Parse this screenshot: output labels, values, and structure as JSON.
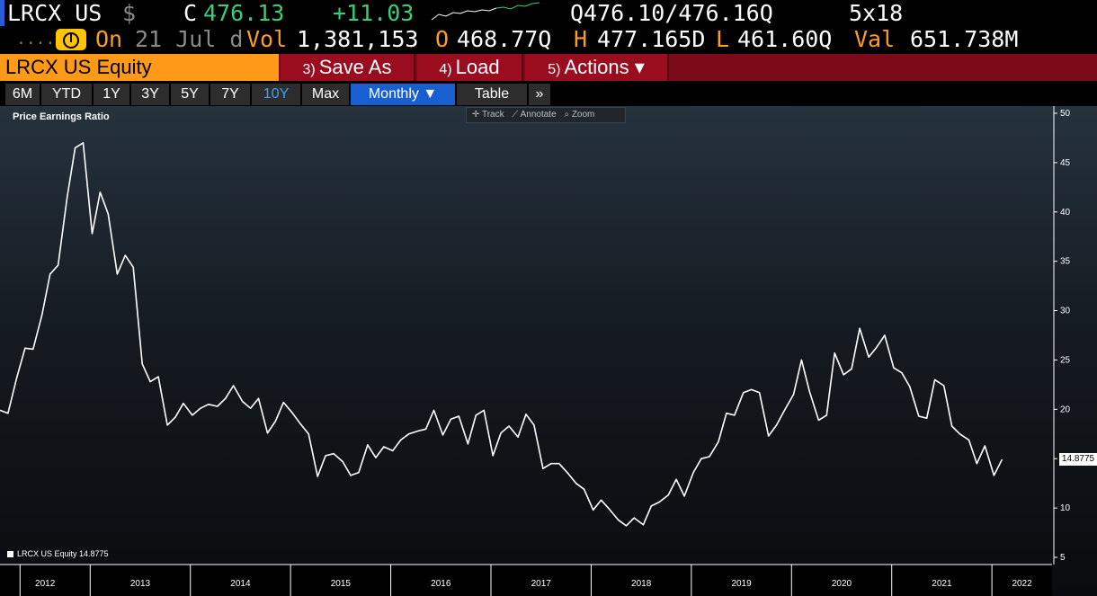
{
  "quote": {
    "ticker": "LRCX US",
    "currency": "$",
    "close_label": "C",
    "last": "476.13",
    "change": "+11.03",
    "bid_ask": "Q476.10/476.16Q",
    "size": "5x18",
    "on_label": "On",
    "date_text": "21 Jul d",
    "vol_label": "Vol",
    "volume": "1,381,153",
    "open_label": "O",
    "open": "468.77Q",
    "high_label": "H",
    "high": "477.165D",
    "low_label": "L",
    "low": "461.60Q",
    "val_label": "Val",
    "value": "651.738M",
    "dots": "....."
  },
  "menu": {
    "security": "LRCX US Equity",
    "save_num": "3)",
    "save_label": "Save As",
    "load_num": "4)",
    "load_label": "Load",
    "actions_num": "5)",
    "actions_label": "Actions ▾"
  },
  "ranges": [
    "6M",
    "YTD",
    "1Y",
    "3Y",
    "5Y",
    "7Y",
    "10Y",
    "Max"
  ],
  "selected_range": "10Y",
  "period": "Monthly ▼",
  "table_label": "Table",
  "more_label": "»",
  "tools": {
    "track": "✛ Track",
    "annotate": "⟋ Annotate",
    "zoom": "⌕ Zoom"
  },
  "colors": {
    "accent_orange": "#ff9a18",
    "menu_red": "#7b0b18",
    "selected_blue": "#1a5fcf",
    "line": "#ffffff"
  },
  "chart_data": {
    "type": "line",
    "title": "Price Earnings Ratio",
    "legend": "LRCX US Equity  14.8775",
    "last_value_label": "14.8775",
    "ylim": [
      5,
      50
    ],
    "yticks": [
      5,
      10,
      15,
      20,
      25,
      30,
      35,
      40,
      45,
      50
    ],
    "xticks": [
      "2012",
      "2013",
      "2014",
      "2015",
      "2016",
      "2017",
      "2018",
      "2019",
      "2020",
      "2021",
      "2022"
    ],
    "xtick_years": [
      2012.0,
      2012.7,
      2013.7,
      2014.7,
      2015.7,
      2016.7,
      2017.7,
      2018.7,
      2019.7,
      2020.7,
      2021.7
    ],
    "xlim": [
      2011.8,
      2022.3
    ],
    "series": [
      {
        "values": [
          [
            2011.8,
            19.9
          ],
          [
            2011.88,
            19.6
          ],
          [
            2011.97,
            23.3
          ],
          [
            2012.05,
            26.2
          ],
          [
            2012.13,
            26.1
          ],
          [
            2012.22,
            29.6
          ],
          [
            2012.3,
            33.7
          ],
          [
            2012.38,
            34.6
          ],
          [
            2012.47,
            41.5
          ],
          [
            2012.55,
            46.5
          ],
          [
            2012.63,
            47.0
          ],
          [
            2012.72,
            37.8
          ],
          [
            2012.8,
            42.0
          ],
          [
            2012.88,
            39.8
          ],
          [
            2012.97,
            33.7
          ],
          [
            2013.05,
            35.6
          ],
          [
            2013.13,
            34.4
          ],
          [
            2013.22,
            24.6
          ],
          [
            2013.3,
            22.8
          ],
          [
            2013.38,
            23.3
          ],
          [
            2013.47,
            18.4
          ],
          [
            2013.55,
            19.2
          ],
          [
            2013.63,
            20.6
          ],
          [
            2013.72,
            19.4
          ],
          [
            2013.8,
            20.1
          ],
          [
            2013.88,
            20.5
          ],
          [
            2013.97,
            20.3
          ],
          [
            2014.05,
            21.1
          ],
          [
            2014.13,
            22.4
          ],
          [
            2014.22,
            20.8
          ],
          [
            2014.3,
            20.1
          ],
          [
            2014.38,
            21.1
          ],
          [
            2014.47,
            17.6
          ],
          [
            2014.55,
            18.8
          ],
          [
            2014.63,
            20.7
          ],
          [
            2014.72,
            19.6
          ],
          [
            2014.8,
            18.5
          ],
          [
            2014.88,
            17.5
          ],
          [
            2014.97,
            13.2
          ],
          [
            2015.05,
            15.3
          ],
          [
            2015.13,
            15.5
          ],
          [
            2015.22,
            14.7
          ],
          [
            2015.3,
            13.3
          ],
          [
            2015.38,
            13.6
          ],
          [
            2015.47,
            16.4
          ],
          [
            2015.55,
            15.1
          ],
          [
            2015.63,
            16.2
          ],
          [
            2015.72,
            15.8
          ],
          [
            2015.8,
            16.9
          ],
          [
            2015.88,
            17.5
          ],
          [
            2015.97,
            17.8
          ],
          [
            2016.05,
            18.0
          ],
          [
            2016.13,
            19.9
          ],
          [
            2016.22,
            17.4
          ],
          [
            2016.3,
            19.0
          ],
          [
            2016.38,
            19.3
          ],
          [
            2016.47,
            16.5
          ],
          [
            2016.55,
            19.4
          ],
          [
            2016.63,
            19.9
          ],
          [
            2016.72,
            15.3
          ],
          [
            2016.8,
            17.6
          ],
          [
            2016.88,
            18.3
          ],
          [
            2016.97,
            17.2
          ],
          [
            2017.05,
            19.5
          ],
          [
            2017.13,
            18.4
          ],
          [
            2017.22,
            14.0
          ],
          [
            2017.3,
            14.5
          ],
          [
            2017.38,
            14.5
          ],
          [
            2017.47,
            13.5
          ],
          [
            2017.55,
            12.5
          ],
          [
            2017.63,
            11.9
          ],
          [
            2017.72,
            9.8
          ],
          [
            2017.8,
            10.8
          ],
          [
            2017.88,
            9.9
          ],
          [
            2017.97,
            8.8
          ],
          [
            2018.05,
            8.2
          ],
          [
            2018.13,
            9.0
          ],
          [
            2018.22,
            8.3
          ],
          [
            2018.3,
            10.2
          ],
          [
            2018.38,
            10.6
          ],
          [
            2018.47,
            11.3
          ],
          [
            2018.55,
            12.9
          ],
          [
            2018.63,
            11.2
          ],
          [
            2018.72,
            13.6
          ],
          [
            2018.8,
            15.0
          ],
          [
            2018.88,
            15.2
          ],
          [
            2018.97,
            16.7
          ],
          [
            2019.05,
            19.6
          ],
          [
            2019.13,
            19.4
          ],
          [
            2019.22,
            21.7
          ],
          [
            2019.3,
            22.0
          ],
          [
            2019.38,
            21.7
          ],
          [
            2019.47,
            17.3
          ],
          [
            2019.55,
            18.4
          ],
          [
            2019.63,
            19.9
          ],
          [
            2019.72,
            21.5
          ],
          [
            2019.8,
            25.0
          ],
          [
            2019.88,
            21.8
          ],
          [
            2019.97,
            18.9
          ],
          [
            2020.05,
            19.4
          ],
          [
            2020.13,
            25.7
          ],
          [
            2020.22,
            23.5
          ],
          [
            2020.3,
            24.1
          ],
          [
            2020.38,
            28.2
          ],
          [
            2020.47,
            25.3
          ],
          [
            2020.55,
            26.3
          ],
          [
            2020.63,
            27.5
          ],
          [
            2020.72,
            24.2
          ],
          [
            2020.8,
            23.7
          ],
          [
            2020.88,
            22.3
          ],
          [
            2020.97,
            19.3
          ],
          [
            2021.05,
            19.1
          ],
          [
            2021.13,
            23.0
          ],
          [
            2021.22,
            22.4
          ],
          [
            2021.3,
            18.3
          ],
          [
            2021.38,
            17.5
          ],
          [
            2021.47,
            16.9
          ],
          [
            2021.55,
            14.5
          ],
          [
            2021.63,
            16.3
          ],
          [
            2021.72,
            13.3
          ],
          [
            2021.8,
            14.9
          ]
        ]
      }
    ]
  }
}
